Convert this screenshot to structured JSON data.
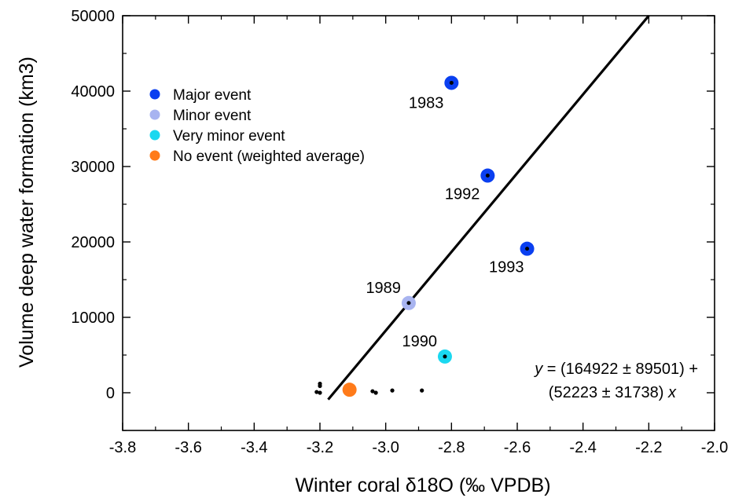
{
  "chart_data": {
    "type": "scatter",
    "xlabel": "Winter coral δ18O (‰ VPDB)",
    "ylabel": "Volume deep water formation (km3)",
    "xlim": [
      -3.8,
      -2.0
    ],
    "ylim": [
      -5000,
      50000
    ],
    "xticks": [
      "-3.8",
      "-3.6",
      "-3.4",
      "-3.2",
      "-3.0",
      "-2.8",
      "-2.6",
      "-2.4",
      "-2.2",
      "-2.0"
    ],
    "yticks": [
      "0",
      "10000",
      "20000",
      "30000",
      "40000",
      "50000"
    ],
    "grid": false,
    "legend_position": "top-left",
    "legend": [
      {
        "label": "Major event",
        "color": "#0a3ff0"
      },
      {
        "label": "Minor event",
        "color": "#a8b4f0"
      },
      {
        "label": "Very minor event",
        "color": "#1ad8f0"
      },
      {
        "label": "No event (weighted average)",
        "color": "#ff7b1a"
      }
    ],
    "series": [
      {
        "name": "Major event",
        "color": "#0a3ff0",
        "points": [
          {
            "x": -2.8,
            "y": 41100,
            "label": "1983"
          },
          {
            "x": -2.69,
            "y": 28800,
            "label": "1992"
          },
          {
            "x": -2.57,
            "y": 19100,
            "label": "1993"
          }
        ]
      },
      {
        "name": "Minor event",
        "color": "#a8b4f0",
        "points": [
          {
            "x": -2.93,
            "y": 11900,
            "label": "1989"
          }
        ]
      },
      {
        "name": "Very minor event",
        "color": "#1ad8f0",
        "points": [
          {
            "x": -2.82,
            "y": 4800,
            "label": "1990"
          }
        ]
      },
      {
        "name": "No event (weighted average)",
        "color": "#ff7b1a",
        "points": [
          {
            "x": -3.11,
            "y": 400
          }
        ]
      }
    ],
    "small_points": [
      {
        "x": -3.21,
        "y": 100
      },
      {
        "x": -3.2,
        "y": 0
      },
      {
        "x": -3.2,
        "y": 900
      },
      {
        "x": -3.2,
        "y": 1200
      },
      {
        "x": -3.04,
        "y": 200
      },
      {
        "x": -3.03,
        "y": 0
      },
      {
        "x": -2.98,
        "y": 300
      },
      {
        "x": -2.89,
        "y": 300
      }
    ],
    "fit_line": {
      "x": [
        -3.175,
        -2.2
      ],
      "y": [
        -900,
        50000
      ]
    },
    "equation": {
      "line1_var": "y",
      "line1_rest": " = (164922 ± 89501) +",
      "line2_rest": "(52223 ± 31738) ",
      "line2_var": "x"
    }
  }
}
